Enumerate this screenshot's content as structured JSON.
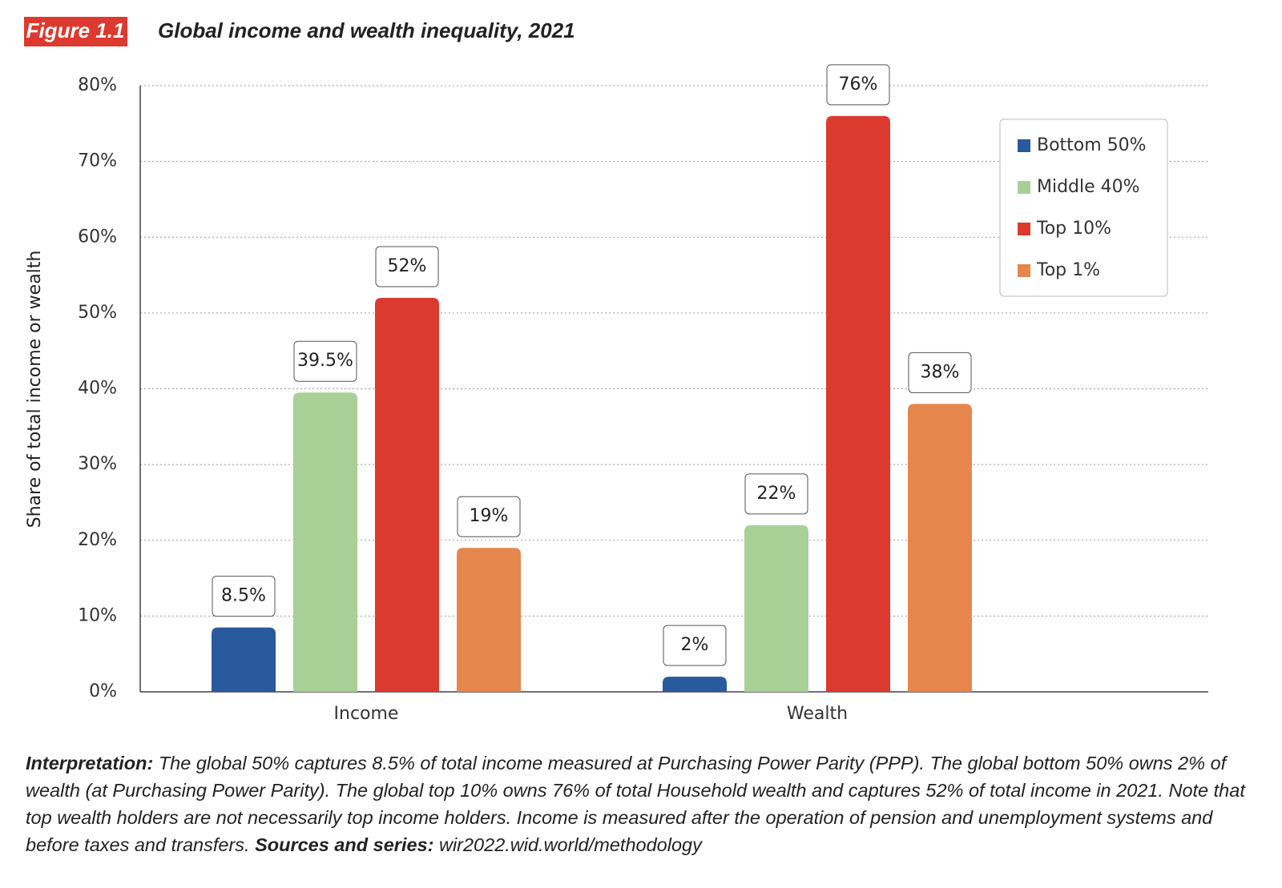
{
  "figure_label": "Figure 1.1",
  "chart_data": {
    "type": "bar",
    "title": "Global income and wealth inequality, 2021",
    "y_label": "Share of total income or wealth",
    "categories": [
      "Income",
      "Wealth"
    ],
    "series": [
      {
        "name": "Bottom 50%",
        "color": "#2a5a9e",
        "values": [
          8.5,
          2
        ],
        "value_labels": [
          "8.5%",
          "2%"
        ]
      },
      {
        "name": "Middle 40%",
        "color": "#a8d096",
        "values": [
          39.5,
          22
        ],
        "value_labels": [
          "39.5%",
          "22%"
        ]
      },
      {
        "name": "Top 10%",
        "color": "#dc3a2f",
        "values": [
          52,
          76
        ],
        "value_labels": [
          "52%",
          "76%"
        ]
      },
      {
        "name": "Top 1%",
        "color": "#e5874c",
        "values": [
          19,
          38
        ],
        "value_labels": [
          "19%",
          "38%"
        ]
      }
    ],
    "ylim": [
      0,
      80
    ],
    "yticks": [
      {
        "value": 0,
        "label": "0%"
      },
      {
        "value": 10,
        "label": "10%"
      },
      {
        "value": 20,
        "label": "20%"
      },
      {
        "value": 30,
        "label": "30%"
      },
      {
        "value": 40,
        "label": "40%"
      },
      {
        "value": 50,
        "label": "50%"
      },
      {
        "value": 60,
        "label": "60%"
      },
      {
        "value": 70,
        "label": "70%"
      },
      {
        "value": 80,
        "label": "80%"
      }
    ],
    "grid": true
  },
  "note": {
    "lead": "Interpretation:",
    "text": "The global 50% captures 8.5% of total income measured at Purchasing Power Parity (PPP). The global bottom 50% owns 2% of wealth (at Purchasing Power Parity). The global top 10% owns 76% of total Household wealth and captures 52% of total income in 2021. Note that top wealth holders are not necessarily top income holders. Income is measured after the operation of pension and unemployment systems and before taxes and transfers.",
    "sources_label": "Sources and series:",
    "sources": "wir2022.wid.world/methodology"
  }
}
